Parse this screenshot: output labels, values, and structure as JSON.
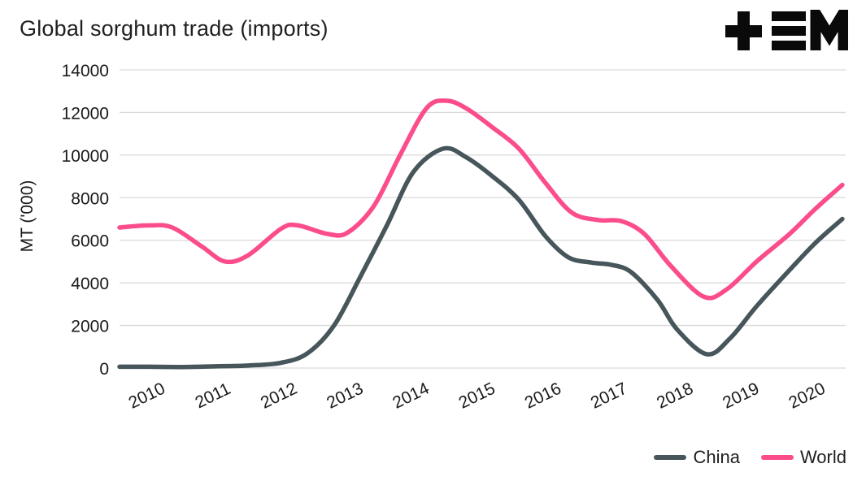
{
  "page": {
    "title": "Global sorghum trade (imports)"
  },
  "logo": {
    "name": "tem-logo"
  },
  "axes": {
    "y_label": "MT ('000)",
    "y_tick_labels": [
      "0",
      "2000",
      "4000",
      "6000",
      "8000",
      "10000",
      "12000",
      "14000"
    ],
    "x_tick_labels": [
      "2010",
      "2011",
      "2012",
      "2013",
      "2014",
      "2015",
      "2016",
      "2017",
      "2018",
      "2019",
      "2020"
    ]
  },
  "colors": {
    "china_line": "#47565b",
    "world_line": "#fb4d8c",
    "gridline": "#d9d9d9",
    "text": "#1a1a1a",
    "logo": "#0a0a0a"
  },
  "chart_data": {
    "type": "line",
    "title": "Global sorghum trade (imports)",
    "xlabel": "",
    "ylabel": "MT ('000)",
    "ylim": [
      0,
      14000
    ],
    "xlim": [
      2009.55,
      2020.55
    ],
    "y_ticks": [
      0,
      2000,
      4000,
      6000,
      8000,
      10000,
      12000,
      14000
    ],
    "x_ticks": [
      2010,
      2011,
      2012,
      2013,
      2014,
      2015,
      2016,
      2017,
      2018,
      2019,
      2020
    ],
    "grid": "horizontal",
    "legend_position": "bottom-right",
    "series": [
      {
        "name": "China",
        "color": "#47565b",
        "points": [
          [
            2009.55,
            60
          ],
          [
            2010.0,
            60
          ],
          [
            2010.5,
            50
          ],
          [
            2011.0,
            80
          ],
          [
            2011.5,
            120
          ],
          [
            2012.0,
            250
          ],
          [
            2012.4,
            700
          ],
          [
            2012.8,
            2000
          ],
          [
            2013.2,
            4300
          ],
          [
            2013.6,
            6700
          ],
          [
            2014.0,
            9200
          ],
          [
            2014.45,
            10300
          ],
          [
            2014.8,
            9900
          ],
          [
            2015.2,
            9000
          ],
          [
            2015.6,
            7900
          ],
          [
            2016.0,
            6200
          ],
          [
            2016.35,
            5200
          ],
          [
            2016.7,
            4950
          ],
          [
            2017.0,
            4850
          ],
          [
            2017.3,
            4500
          ],
          [
            2017.7,
            3200
          ],
          [
            2018.0,
            1800
          ],
          [
            2018.45,
            650
          ],
          [
            2018.8,
            1400
          ],
          [
            2019.2,
            2900
          ],
          [
            2019.7,
            4600
          ],
          [
            2020.1,
            5900
          ],
          [
            2020.5,
            7000
          ]
        ]
      },
      {
        "name": "World",
        "color": "#fb4d8c",
        "points": [
          [
            2009.55,
            6600
          ],
          [
            2010.0,
            6700
          ],
          [
            2010.35,
            6600
          ],
          [
            2010.8,
            5700
          ],
          [
            2011.15,
            5000
          ],
          [
            2011.5,
            5300
          ],
          [
            2012.0,
            6550
          ],
          [
            2012.25,
            6700
          ],
          [
            2012.7,
            6300
          ],
          [
            2013.0,
            6350
          ],
          [
            2013.4,
            7600
          ],
          [
            2013.8,
            10000
          ],
          [
            2014.2,
            12200
          ],
          [
            2014.5,
            12550
          ],
          [
            2014.8,
            12200
          ],
          [
            2015.2,
            11300
          ],
          [
            2015.6,
            10300
          ],
          [
            2016.0,
            8700
          ],
          [
            2016.4,
            7300
          ],
          [
            2016.8,
            6950
          ],
          [
            2017.15,
            6900
          ],
          [
            2017.5,
            6300
          ],
          [
            2017.9,
            4800
          ],
          [
            2018.4,
            3350
          ],
          [
            2018.75,
            3700
          ],
          [
            2019.2,
            5000
          ],
          [
            2019.7,
            6300
          ],
          [
            2020.1,
            7500
          ],
          [
            2020.5,
            8600
          ]
        ]
      }
    ]
  }
}
